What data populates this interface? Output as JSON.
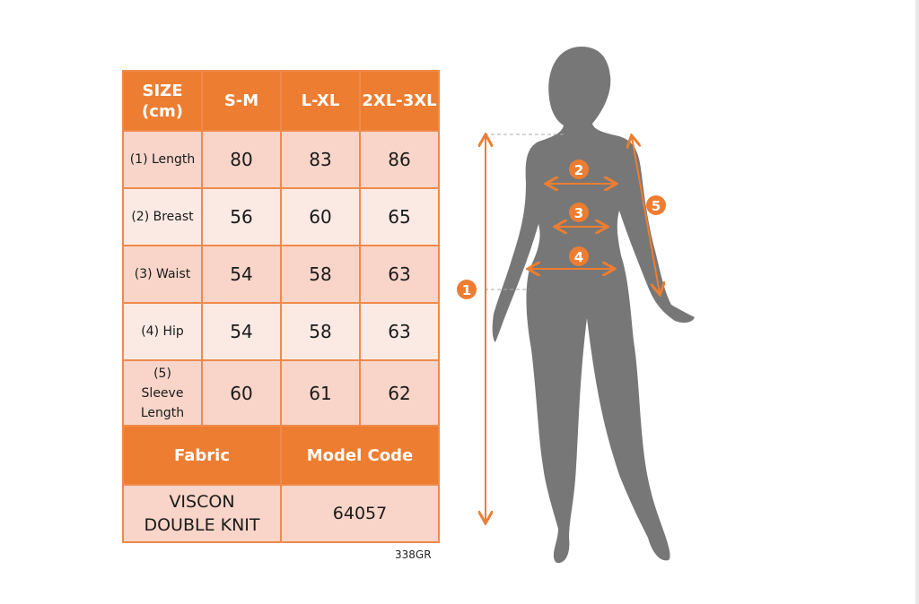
{
  "table": {
    "header": [
      "SIZE (cm)",
      "S-M",
      "L-XL",
      "2XL-3XL"
    ],
    "rows": [
      {
        "label": "(1) Length",
        "values": [
          "80",
          "83",
          "86"
        ]
      },
      {
        "label": "(2) Breast",
        "values": [
          "56",
          "60",
          "65"
        ]
      },
      {
        "label": "(3) Waist",
        "values": [
          "54",
          "58",
          "63"
        ]
      },
      {
        "label": "(4) Hip",
        "values": [
          "54",
          "58",
          "63"
        ]
      },
      {
        "label": "(5) Sleeve Length",
        "values": [
          "60",
          "61",
          "62"
        ]
      }
    ],
    "fabric_header": "Fabric",
    "model_code_header": "Model Code",
    "fabric": "VISCON DOUBLE KNIT",
    "model_code": "64057"
  },
  "product_code": "338GR",
  "diagram": {
    "markers": [
      "1",
      "2",
      "3",
      "4",
      "5"
    ]
  },
  "colors": {
    "accent": "#ED7D31",
    "cell_dark": "#F8D5C8",
    "cell_light": "#FBEAE4",
    "silhouette": "#777777"
  }
}
